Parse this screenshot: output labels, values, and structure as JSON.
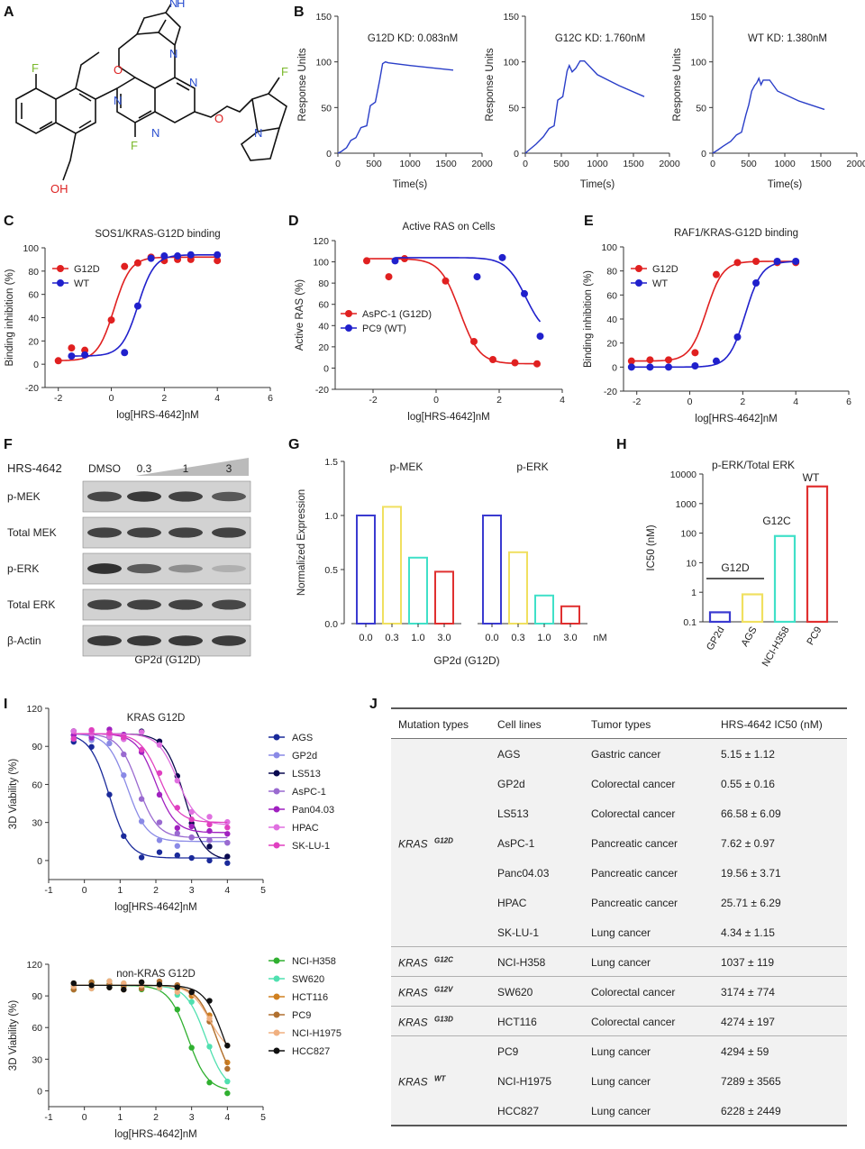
{
  "panel_letters": {
    "A": "A",
    "B": "B",
    "C": "C",
    "D": "D",
    "E": "E",
    "F": "F",
    "G": "G",
    "H": "H",
    "I": "I",
    "J": "J"
  },
  "panelA": {
    "atoms": {
      "F1": "F",
      "F2": "F",
      "F3": "F",
      "O1": "O",
      "O2": "O",
      "OH": "OH",
      "N1": "N",
      "N2": "N",
      "N3": "N",
      "N4": "N",
      "N5": "N",
      "N6": "N",
      "H": "H"
    }
  },
  "panelB": {
    "ylabel": "Response Units",
    "xlabel": "Time(s)",
    "xticks": [
      "0",
      "500",
      "1000",
      "1500",
      "2000"
    ],
    "yticks": [
      "0",
      "50",
      "100",
      "150"
    ],
    "sensorgrams": [
      {
        "title": "G12D KD: 0.083nM",
        "points": [
          [
            0,
            0
          ],
          [
            50,
            2
          ],
          [
            120,
            6
          ],
          [
            180,
            14
          ],
          [
            250,
            17
          ],
          [
            320,
            28
          ],
          [
            360,
            29
          ],
          [
            400,
            30
          ],
          [
            450,
            52
          ],
          [
            520,
            56
          ],
          [
            580,
            80
          ],
          [
            620,
            98
          ],
          [
            660,
            100
          ],
          [
            700,
            99
          ],
          [
            1000,
            96
          ],
          [
            1600,
            91
          ]
        ]
      },
      {
        "title": "G12C KD: 1.760nM",
        "points": [
          [
            0,
            0
          ],
          [
            60,
            4
          ],
          [
            150,
            10
          ],
          [
            250,
            18
          ],
          [
            330,
            27
          ],
          [
            400,
            30
          ],
          [
            450,
            58
          ],
          [
            520,
            62
          ],
          [
            580,
            90
          ],
          [
            610,
            96
          ],
          [
            650,
            89
          ],
          [
            700,
            93
          ],
          [
            760,
            101
          ],
          [
            820,
            101
          ],
          [
            1000,
            86
          ],
          [
            1300,
            74
          ],
          [
            1650,
            62
          ]
        ]
      },
      {
        "title": "WT KD: 1.380nM",
        "points": [
          [
            0,
            0
          ],
          [
            60,
            3
          ],
          [
            150,
            8
          ],
          [
            250,
            13
          ],
          [
            330,
            20
          ],
          [
            400,
            23
          ],
          [
            460,
            42
          ],
          [
            500,
            53
          ],
          [
            540,
            68
          ],
          [
            580,
            74
          ],
          [
            610,
            77
          ],
          [
            640,
            82
          ],
          [
            670,
            75
          ],
          [
            700,
            80
          ],
          [
            790,
            80
          ],
          [
            900,
            68
          ],
          [
            1200,
            57
          ],
          [
            1550,
            48
          ]
        ]
      }
    ]
  },
  "panelC": {
    "title": "SOS1/KRAS-G12D binding",
    "xlabel": "log[HRS-4642]nM",
    "ylabel": "Binding inhibition (%)",
    "xticks": [
      "-2",
      "0",
      "2",
      "4",
      "6"
    ],
    "yticks": [
      "-20",
      "0",
      "20",
      "40",
      "60",
      "80",
      "100"
    ],
    "series": [
      {
        "name": "G12D",
        "color": "#e02020",
        "points": [
          [
            -2,
            3
          ],
          [
            -1.5,
            14
          ],
          [
            -1,
            12
          ],
          [
            0,
            38
          ],
          [
            0.5,
            84
          ],
          [
            1,
            87
          ],
          [
            1.5,
            92
          ],
          [
            2,
            89
          ],
          [
            2.5,
            90
          ],
          [
            3,
            90
          ],
          [
            4,
            89
          ]
        ]
      },
      {
        "name": "WT",
        "color": "#2020cc",
        "points": [
          [
            -1.5,
            7
          ],
          [
            -1,
            8
          ],
          [
            0.5,
            10
          ],
          [
            1,
            50
          ],
          [
            1.5,
            91
          ],
          [
            2,
            93
          ],
          [
            2.5,
            93
          ],
          [
            3,
            94
          ],
          [
            4,
            94
          ]
        ]
      }
    ]
  },
  "panelD": {
    "title": "Active RAS on Cells",
    "xlabel": "log[HRS-4642]nM",
    "ylabel": "Active RAS (%)",
    "xticks": [
      "-2",
      "0",
      "2",
      "4"
    ],
    "yticks": [
      "-20",
      "0",
      "20",
      "40",
      "60",
      "80",
      "100",
      "120"
    ],
    "series": [
      {
        "name": "AsPC-1 (G12D)",
        "color": "#e02020",
        "points": [
          [
            -2.2,
            101
          ],
          [
            -1.5,
            86
          ],
          [
            -1,
            103
          ],
          [
            0.3,
            82
          ],
          [
            1.2,
            25
          ],
          [
            1.8,
            8
          ],
          [
            2.5,
            5
          ],
          [
            3.2,
            4
          ]
        ]
      },
      {
        "name": "PC9 (WT)",
        "color": "#2020cc",
        "points": [
          [
            -1.3,
            101
          ],
          [
            1.3,
            86
          ],
          [
            2.1,
            104
          ],
          [
            2.8,
            70
          ],
          [
            3.3,
            30
          ]
        ]
      }
    ]
  },
  "panelE": {
    "title": "RAF1/KRAS-G12D binding",
    "xlabel": "log[HRS-4642]nM",
    "ylabel": "Binding inhibition (%)",
    "xticks": [
      "-2",
      "0",
      "2",
      "4",
      "6"
    ],
    "yticks": [
      "-20",
      "0",
      "20",
      "40",
      "60",
      "80",
      "100"
    ],
    "series": [
      {
        "name": "G12D",
        "color": "#e02020",
        "points": [
          [
            -2.2,
            5
          ],
          [
            -1.5,
            6
          ],
          [
            -0.8,
            6
          ],
          [
            0.2,
            12
          ],
          [
            1,
            77
          ],
          [
            1.8,
            87
          ],
          [
            2.5,
            88
          ],
          [
            3.3,
            87
          ],
          [
            4,
            87
          ]
        ]
      },
      {
        "name": "WT",
        "color": "#2020cc",
        "points": [
          [
            -2.2,
            0
          ],
          [
            -1.5,
            0
          ],
          [
            -0.8,
            0
          ],
          [
            0.2,
            1
          ],
          [
            1,
            5
          ],
          [
            1.8,
            25
          ],
          [
            2.5,
            70
          ],
          [
            3.3,
            88
          ],
          [
            4,
            88
          ]
        ]
      }
    ]
  },
  "panelF": {
    "row_header": "HRS-4642",
    "lanes": [
      "DMSO",
      "0.3",
      "1",
      "3"
    ],
    "rows": [
      "p-MEK",
      "Total MEK",
      "p-ERK",
      "Total ERK",
      "β-Actin"
    ],
    "intensities": [
      [
        0.82,
        0.9,
        0.85,
        0.72
      ],
      [
        0.85,
        0.85,
        0.85,
        0.85
      ],
      [
        0.95,
        0.7,
        0.4,
        0.2
      ],
      [
        0.85,
        0.85,
        0.85,
        0.82
      ],
      [
        0.9,
        0.9,
        0.9,
        0.88
      ]
    ],
    "caption": "GP2d (G12D)"
  },
  "panelG": {
    "ylabel": "Normalized Expression",
    "xlabel": "GP2d (G12D)",
    "unit": "nM",
    "yticks": [
      "0.0",
      "0.5",
      "1.0",
      "1.5"
    ],
    "groups": [
      {
        "name": "p-MEK",
        "categories": [
          "0.0",
          "0.3",
          "1.0",
          "3.0"
        ],
        "values": [
          1.0,
          1.08,
          0.61,
          0.48
        ]
      },
      {
        "name": "p-ERK",
        "categories": [
          "0.0",
          "0.3",
          "1.0",
          "3.0"
        ],
        "values": [
          1.0,
          0.66,
          0.26,
          0.16
        ]
      }
    ],
    "bar_colors": [
      "#3a3ad0",
      "#f0e060",
      "#40e0c8",
      "#e03030"
    ]
  },
  "panelH": {
    "title": "p-ERK/Total ERK",
    "ylabel": "IC50 (nM)",
    "yticks": [
      "0.1",
      "1",
      "10",
      "100",
      "1000",
      "10000"
    ],
    "categories": [
      "GP2d",
      "AGS",
      "NCI-H358",
      "PC9"
    ],
    "values": [
      0.21,
      0.85,
      80,
      3800
    ],
    "colors": [
      "#3a3ad0",
      "#f0e060",
      "#40e0c8",
      "#e03030"
    ],
    "annotations": {
      "g12d": "G12D",
      "g12c": "G12C",
      "wt": "WT"
    }
  },
  "panelI": {
    "top": {
      "title": "KRAS G12D",
      "xlabel": "log[HRS-4642]nM",
      "ylabel": "3D Viability (%)",
      "xticks": [
        "-1",
        "0",
        "1",
        "2",
        "3",
        "4",
        "5"
      ],
      "yticks": [
        "0",
        "30",
        "60",
        "90",
        "120"
      ],
      "series": [
        {
          "name": "AGS",
          "color": "#1a2a9a",
          "ic50": 0.7,
          "bottom": 2
        },
        {
          "name": "GP2d",
          "color": "#8a8ae6",
          "ic50": 1.2,
          "bottom": 15
        },
        {
          "name": "LS513",
          "color": "#0a0a50",
          "ic50": 2.8,
          "bottom": 0
        },
        {
          "name": "AsPC-1",
          "color": "#9a6ad0",
          "ic50": 1.5,
          "bottom": 18
        },
        {
          "name": "Pan04.03",
          "color": "#a020c0",
          "ic50": 2.0,
          "bottom": 22
        },
        {
          "name": "HPAC",
          "color": "#e070e0",
          "ic50": 2.6,
          "bottom": 28
        },
        {
          "name": "SK-LU-1",
          "color": "#e040c0",
          "ic50": 2.1,
          "bottom": 30
        }
      ]
    },
    "bottom": {
      "title": "non-KRAS G12D",
      "xlabel": "log[HRS-4642]nM",
      "ylabel": "3D Viability (%)",
      "xticks": [
        "-1",
        "0",
        "1",
        "2",
        "3",
        "4",
        "5"
      ],
      "yticks": [
        "0",
        "30",
        "60",
        "90",
        "120"
      ],
      "series": [
        {
          "name": "NCI-H358",
          "color": "#30b030",
          "ic50": 2.9,
          "bottom": 0
        },
        {
          "name": "SW620",
          "color": "#50e0b0",
          "ic50": 3.4,
          "bottom": 0
        },
        {
          "name": "HCT116",
          "color": "#d08020",
          "ic50": 3.7,
          "bottom": 0
        },
        {
          "name": "PC9",
          "color": "#b07030",
          "ic50": 3.7,
          "bottom": 0
        },
        {
          "name": "NCI-H1975",
          "color": "#f0b080",
          "ic50": 3.5,
          "bottom": 35
        },
        {
          "name": "HCC827",
          "color": "#101010",
          "ic50": 3.9,
          "bottom": 0
        }
      ]
    }
  },
  "panelJ": {
    "headers": [
      "Mutation types",
      "Cell lines",
      "Tumor types",
      "HRS-4642  IC50  (nM)"
    ],
    "groups": [
      {
        "mutation": "KRAS",
        "sup": "G12D",
        "rows": [
          [
            "AGS",
            "Gastric cancer",
            "5.15 ± 1.12"
          ],
          [
            "GP2d",
            "Colorectal cancer",
            "0.55 ± 0.16"
          ],
          [
            "LS513",
            "Colorectal cancer",
            "66.58 ± 6.09"
          ],
          [
            "AsPC-1",
            "Pancreatic cancer",
            "7.62 ± 0.97"
          ],
          [
            "Panc04.03",
            "Pancreatic cancer",
            "19.56 ± 3.71"
          ],
          [
            "HPAC",
            "Pancreatic cancer",
            "25.71 ± 6.29"
          ],
          [
            "SK-LU-1",
            "Lung cancer",
            "4.34 ± 1.15"
          ]
        ]
      },
      {
        "mutation": "KRAS",
        "sup": "G12C",
        "rows": [
          [
            "NCI-H358",
            "Lung cancer",
            "1037 ± 119"
          ]
        ]
      },
      {
        "mutation": "KRAS",
        "sup": "G12V",
        "rows": [
          [
            "SW620",
            "Colorectal cancer",
            "3174 ± 774"
          ]
        ]
      },
      {
        "mutation": "KRAS",
        "sup": "G13D",
        "rows": [
          [
            "HCT116",
            "Colorectal cancer",
            "4274 ± 197"
          ]
        ]
      },
      {
        "mutation": "KRAS",
        "sup": "WT",
        "rows": [
          [
            "PC9",
            "Lung cancer",
            "4294 ± 59"
          ],
          [
            "NCI-H1975",
            "Lung cancer",
            "7289 ± 3565"
          ],
          [
            "HCC827",
            "Lung cancer",
            "6228 ± 2449"
          ]
        ]
      }
    ]
  }
}
